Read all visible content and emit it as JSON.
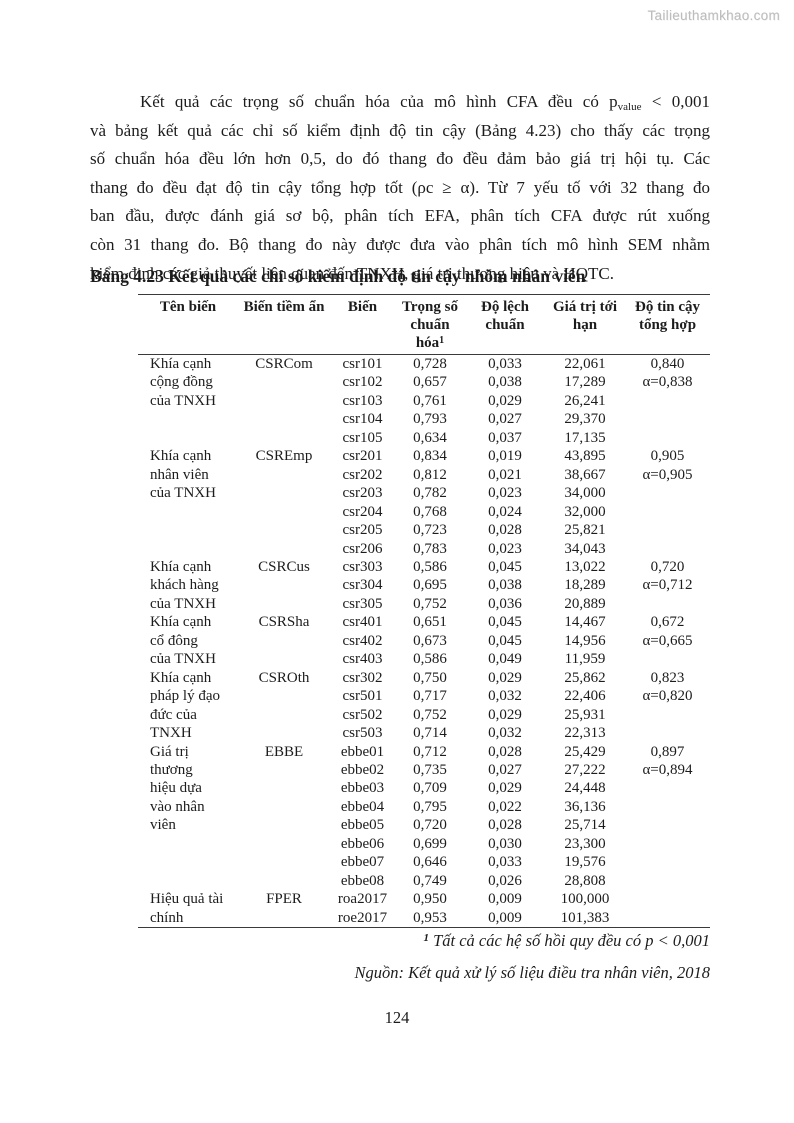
{
  "watermark": "Tailieuthamkhao.com",
  "paragraph": {
    "line1_pre": "Kết quả các trọng số chuẩn hóa của mô hình CFA đều có p",
    "line1_sub": "value",
    "line1_post": " < 0,001",
    "lines": [
      "và bảng kết quả các chỉ số kiểm định độ tin cậy (Bảng 4.23) cho thấy các trọng",
      "số chuẩn hóa đều lớn hơn 0,5, do đó thang đo đều đảm bảo giá trị hội tụ. Các",
      "thang đo đều đạt độ tin cậy tổng hợp tốt (ρc ≥ α). Từ 7 yếu tố với 32 thang đo",
      "ban đầu, được đánh giá sơ bộ, phân tích EFA, phân tích CFA được rút xuống",
      "còn 31 thang đo. Bộ thang đo này được đưa vào phân tích mô hình SEM nhằm",
      "kiểm định các giả thuyết liên quan đến TNXH, giá trị thương hiệu và HQTC."
    ]
  },
  "table": {
    "title": "Bảng 4.23 Kết quả các chỉ số kiểm định độ tin cậy nhóm nhân viên",
    "headers": [
      {
        "text": "Tên biến"
      },
      {
        "text": "Biến tiềm ẩn"
      },
      {
        "text": "Biến"
      },
      {
        "text": "Trọng số chuẩn hóa",
        "sup": "1"
      },
      {
        "text": "Độ lệch chuẩn"
      },
      {
        "text": "Giá trị tới hạn"
      },
      {
        "text": "Độ tin cậy tổng hợp"
      }
    ],
    "rows": [
      [
        "Khía cạnh",
        "CSRCom",
        "csr101",
        "0,728",
        "0,033",
        "22,061",
        "0,840"
      ],
      [
        "cộng đồng",
        "",
        "csr102",
        "0,657",
        "0,038",
        "17,289",
        "α=0,838"
      ],
      [
        "của TNXH",
        "",
        "csr103",
        "0,761",
        "0,029",
        "26,241",
        ""
      ],
      [
        "",
        "",
        "csr104",
        "0,793",
        "0,027",
        "29,370",
        ""
      ],
      [
        "",
        "",
        "csr105",
        "0,634",
        "0,037",
        "17,135",
        ""
      ],
      [
        "Khía cạnh",
        "CSREmp",
        "csr201",
        "0,834",
        "0,019",
        "43,895",
        "0,905"
      ],
      [
        "nhân viên",
        "",
        "csr202",
        "0,812",
        "0,021",
        "38,667",
        "α=0,905"
      ],
      [
        "của TNXH",
        "",
        "csr203",
        "0,782",
        "0,023",
        "34,000",
        ""
      ],
      [
        "",
        "",
        "csr204",
        "0,768",
        "0,024",
        "32,000",
        ""
      ],
      [
        "",
        "",
        "csr205",
        "0,723",
        "0,028",
        "25,821",
        ""
      ],
      [
        "",
        "",
        "csr206",
        "0,783",
        "0,023",
        "34,043",
        ""
      ],
      [
        "Khía cạnh",
        "CSRCus",
        "csr303",
        "0,586",
        "0,045",
        "13,022",
        "0,720"
      ],
      [
        "khách hàng",
        "",
        "csr304",
        "0,695",
        "0,038",
        "18,289",
        "α=0,712"
      ],
      [
        "của TNXH",
        "",
        "csr305",
        "0,752",
        "0,036",
        "20,889",
        ""
      ],
      [
        "Khía cạnh",
        "CSRSha",
        "csr401",
        "0,651",
        "0,045",
        "14,467",
        "0,672"
      ],
      [
        "cổ đông",
        "",
        "csr402",
        "0,673",
        "0,045",
        "14,956",
        "α=0,665"
      ],
      [
        "của TNXH",
        "",
        "csr403",
        "0,586",
        "0,049",
        "11,959",
        ""
      ],
      [
        "Khía cạnh",
        "CSROth",
        "csr302",
        "0,750",
        "0,029",
        "25,862",
        "0,823"
      ],
      [
        "pháp lý đạo",
        "",
        "csr501",
        "0,717",
        "0,032",
        "22,406",
        "α=0,820"
      ],
      [
        "đức của",
        "",
        "csr502",
        "0,752",
        "0,029",
        "25,931",
        ""
      ],
      [
        "TNXH",
        "",
        "csr503",
        "0,714",
        "0,032",
        "22,313",
        ""
      ],
      [
        "Giá trị",
        "EBBE",
        "ebbe01",
        "0,712",
        "0,028",
        "25,429",
        "0,897"
      ],
      [
        "thương",
        "",
        "ebbe02",
        "0,735",
        "0,027",
        "27,222",
        "α=0,894"
      ],
      [
        "hiệu dựa",
        "",
        "ebbe03",
        "0,709",
        "0,029",
        "24,448",
        ""
      ],
      [
        "vào nhân",
        "",
        "ebbe04",
        "0,795",
        "0,022",
        "36,136",
        ""
      ],
      [
        "viên",
        "",
        "ebbe05",
        "0,720",
        "0,028",
        "25,714",
        ""
      ],
      [
        "",
        "",
        "ebbe06",
        "0,699",
        "0,030",
        "23,300",
        ""
      ],
      [
        "",
        "",
        "ebbe07",
        "0,646",
        "0,033",
        "19,576",
        ""
      ],
      [
        "",
        "",
        "ebbe08",
        "0,749",
        "0,026",
        "28,808",
        ""
      ],
      [
        "Hiệu quả tài",
        "FPER",
        "roa2017",
        "0,950",
        "0,009",
        "100,000",
        ""
      ],
      [
        "chính",
        "",
        "roe2017",
        "0,953",
        "0,009",
        "101,383",
        ""
      ]
    ]
  },
  "footnotes": {
    "note1_sup": "1",
    "note1_text": " Tất cả các hệ số hồi quy đều có p < 0,001",
    "source": "Nguồn: Kết quả xử lý số liệu điều tra nhân viên, 2018"
  },
  "page_number": "124"
}
